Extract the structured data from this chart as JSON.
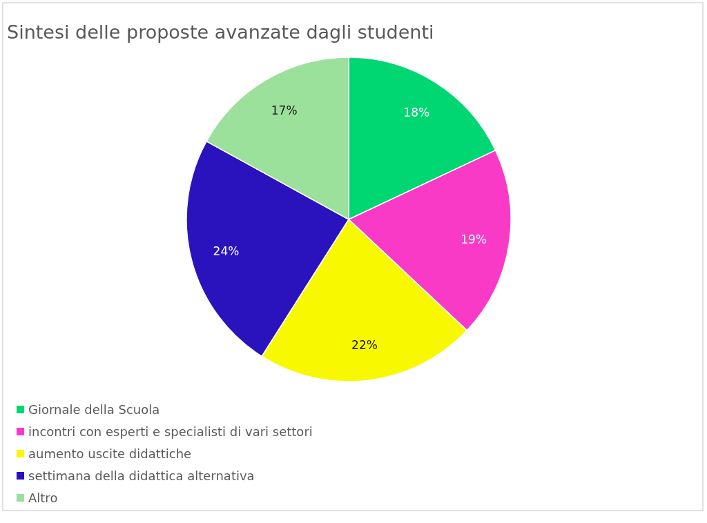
{
  "chart_data": {
    "type": "pie",
    "title": "Sintesi delle proposte avanzate dagli studenti",
    "categories": [
      "Giornale della Scuola",
      "incontri con esperti e specialisti di vari settori",
      "aumento uscite didattiche",
      "settimana della didattica alternativa",
      "Altro"
    ],
    "values": [
      18,
      19,
      22,
      24,
      17
    ],
    "value_labels": [
      "18%",
      "19%",
      "22%",
      "24%",
      "17%"
    ],
    "colors": [
      "#00d672",
      "#f93ac7",
      "#f8f800",
      "#2a12bd",
      "#9be09b"
    ],
    "legend": "bottom left"
  }
}
